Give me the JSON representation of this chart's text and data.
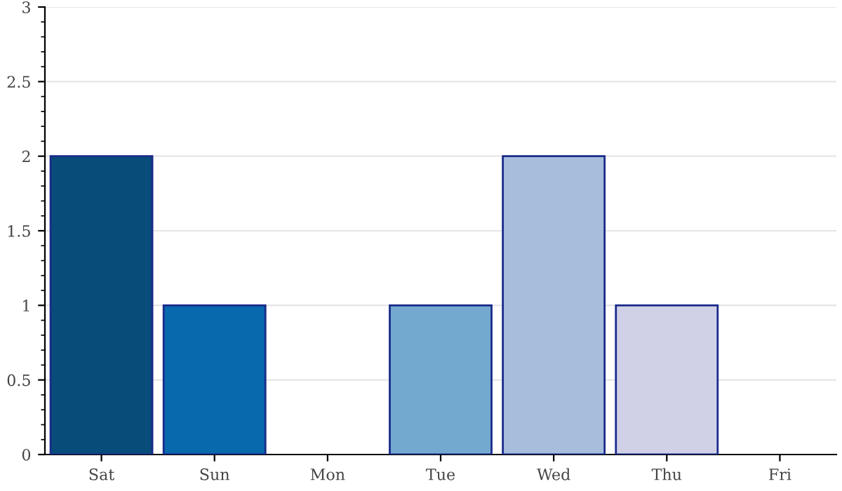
{
  "chart_data": {
    "type": "bar",
    "categories": [
      "Sat",
      "Sun",
      "Mon",
      "Tue",
      "Wed",
      "Thu",
      "Fri"
    ],
    "values": [
      2,
      1,
      0,
      1,
      2,
      1,
      0
    ],
    "colors": [
      "#084c7a",
      "#0869ad",
      null,
      "#74a9cf",
      "#a6bddb",
      "#d0d1e6",
      null
    ],
    "ylim": [
      0,
      3
    ],
    "yticks": [
      0,
      0.5,
      1,
      1.5,
      2,
      2.5,
      3
    ],
    "grid": "y",
    "legend": false
  }
}
